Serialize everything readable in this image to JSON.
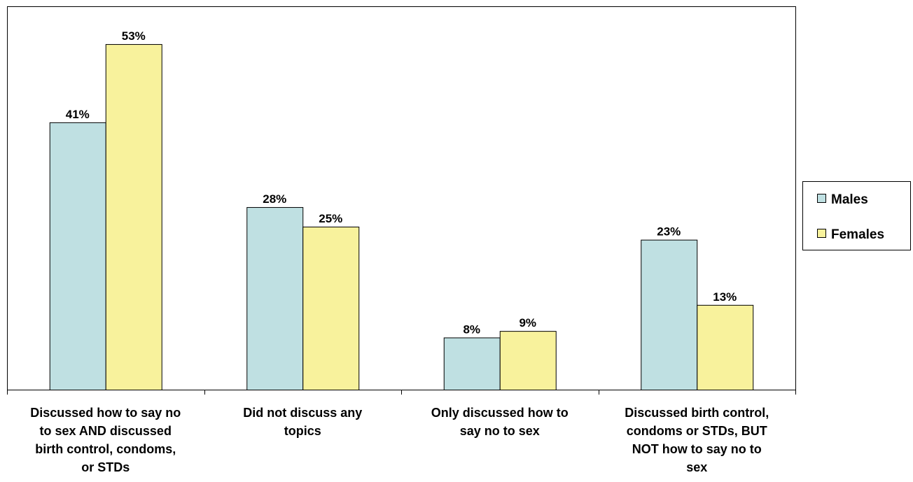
{
  "chart_data": {
    "type": "bar",
    "categories": [
      "Discussed how to say no to sex AND discussed birth control, condoms, or STDs",
      "Did not discuss any topics",
      "Only discussed how to say no to sex",
      "Discussed birth control, condoms or STDs, BUT NOT how to say no to sex"
    ],
    "category_lines": [
      [
        "Discussed how to say no",
        "to sex AND discussed",
        "birth control, condoms,",
        "or STDs"
      ],
      [
        "Did not discuss any",
        "topics"
      ],
      [
        "Only discussed how to",
        "say no to sex"
      ],
      [
        "Discussed birth control,",
        "condoms or STDs, BUT",
        "NOT how to say no to",
        "sex"
      ]
    ],
    "series": [
      {
        "name": "Males",
        "values": [
          41,
          28,
          8,
          23
        ],
        "labels": [
          "41%",
          "28%",
          "8%",
          "23%"
        ],
        "color": "#bfe0e2"
      },
      {
        "name": "Females",
        "values": [
          53,
          25,
          9,
          13
        ],
        "labels": [
          "53%",
          "25%",
          "9%",
          "13%"
        ],
        "color": "#f8f29c"
      }
    ],
    "ylim": [
      0,
      58.8
    ],
    "grid": false,
    "legend_position": "right",
    "title": "",
    "xlabel": "",
    "ylabel": ""
  }
}
